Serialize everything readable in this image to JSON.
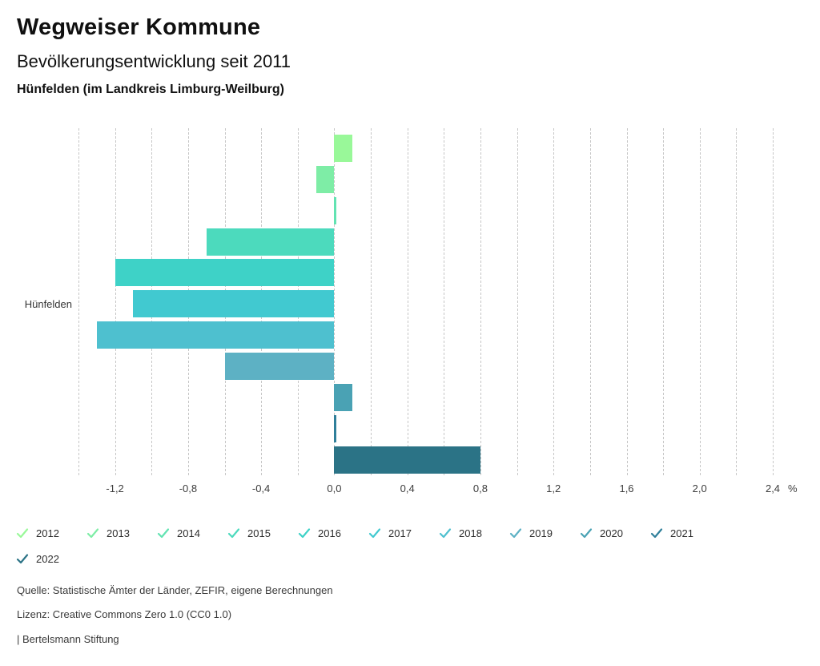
{
  "header": {
    "title": "Wegweiser Kommune",
    "subtitle": "Bevölkerungsentwicklung seit 2011",
    "location": "Hünfelden (im Landkreis Limburg-Weilburg)"
  },
  "chart_data": {
    "type": "bar",
    "orientation": "horizontal",
    "categories": [
      "Hünfelden"
    ],
    "series": [
      {
        "name": "2012",
        "values": [
          0.1
        ],
        "color": "#99f899"
      },
      {
        "name": "2013",
        "values": [
          -0.1
        ],
        "color": "#7eeda6"
      },
      {
        "name": "2014",
        "values": [
          0.0
        ],
        "color": "#62e3b2"
      },
      {
        "name": "2015",
        "values": [
          -0.7
        ],
        "color": "#4cdabd"
      },
      {
        "name": "2016",
        "values": [
          -1.2
        ],
        "color": "#3ed2c7"
      },
      {
        "name": "2017",
        "values": [
          -1.1
        ],
        "color": "#41c9d0"
      },
      {
        "name": "2018",
        "values": [
          -1.3
        ],
        "color": "#4ec0cf"
      },
      {
        "name": "2019",
        "values": [
          -0.6
        ],
        "color": "#5db1c4"
      },
      {
        "name": "2020",
        "values": [
          0.1
        ],
        "color": "#4aa2b4"
      },
      {
        "name": "2021",
        "values": [
          0.0
        ],
        "color": "#2f7f9a"
      },
      {
        "name": "2022",
        "values": [
          0.8
        ],
        "color": "#2b7386"
      }
    ],
    "xlim": [
      -1.45,
      2.55
    ],
    "gridlines": {
      "from": -1.4,
      "to": 2.4,
      "step": 0.2
    },
    "x_tick_values": [
      -1.2,
      -0.8,
      -0.4,
      0.0,
      0.4,
      0.8,
      1.2,
      1.6,
      2.0,
      2.4
    ],
    "x_tick_labels": [
      "-1,2",
      "-0,8",
      "-0,4",
      "0,0",
      "0,4",
      "0,8",
      "1,2",
      "1,6",
      "2,0",
      "2,4"
    ],
    "unit_label": "%",
    "grid": true,
    "legend_position": "bottom",
    "title": "Bevölkerungsentwicklung seit 2011",
    "ylabel": "",
    "xlabel": ""
  },
  "footer": {
    "source": "Quelle: Statistische Ämter der Länder, ZEFIR, eigene Berechnungen",
    "license": "Lizenz: Creative Commons Zero 1.0 (CC0 1.0)",
    "attribution": "| Bertelsmann Stiftung"
  }
}
